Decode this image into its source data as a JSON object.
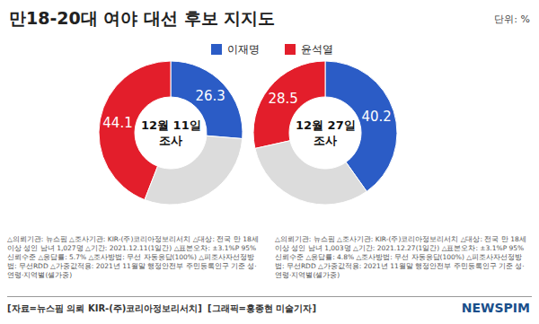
{
  "title": "만18-20대 여야 대선 후보 지지도",
  "unit": "단위: %",
  "chart_data": [
    {
      "type": "pie",
      "title": "12월 11일\n조사",
      "categories": [
        "이재명",
        "윤석열",
        null
      ],
      "values": [
        26.3,
        44.1,
        29.6
      ],
      "value_labels": [
        "26.3",
        "44.1",
        null
      ],
      "colors": [
        "#2b5cc6",
        "#e31e2b",
        "#dcdcdc"
      ],
      "data_labels": true
    },
    {
      "type": "pie",
      "title": "12월 27일\n조사",
      "categories": [
        "이재명",
        "윤석열",
        null
      ],
      "values": [
        40.2,
        28.5,
        31.3
      ],
      "value_labels": [
        "40.2",
        "28.5",
        null
      ],
      "colors": [
        "#2b5cc6",
        "#e31e2b",
        "#dcdcdc"
      ],
      "data_labels": true
    }
  ],
  "notes": [
    "△의뢰기관: 뉴스핌 △조사기관: KIR-(주)코리아정보리서치 △대상: 전국 만 18세 이상 성인 남녀 1,027명 △기간: 2021.12.11(1일간) △표본오차: ±3.1%P 95% 신뢰수준 △응답률: 5.7% △조사방법: 무선 자동응답(100%) △피조사자선정방법: 무선RDD △가중값적용: 2021년 11월말 행정안전부 주민등록인구 기준 성·연령·지역별(셀가중)",
    "△의뢰기관: 뉴스핌 △조사기관: KIR-(주)코리아정보리서치 △대상: 전국 만 18세 이상 성인 남녀 1,003명 △기간: 2021.12.27(1일간) △표본오차: ±3.1%P 95% 신뢰수준 △응답률: 4.8% △조사방법: 무선 자동응답(100%) △피조사자선정방법: 무선RDD △가중값적용: 2021년 11월말 행정안전부 주민등록인구 기준 성·연령·지역별(셀가중)"
  ],
  "source": [
    "[자료=뉴스핌 의뢰 KIR-(주)코리아정보리서치]",
    "[그래픽=홍종현 미술기자]"
  ],
  "brand": "NEWSPIM"
}
